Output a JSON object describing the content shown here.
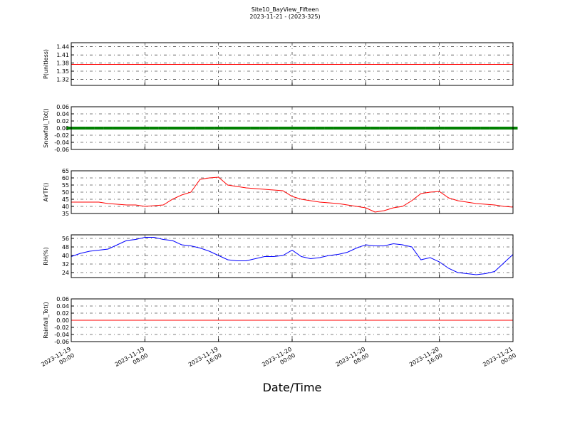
{
  "title": "Site10_BayView_Fifteen",
  "subtitle": "2023-11-21 - (2023-325)",
  "xlabel": "Date/Time",
  "x": [
    "2023-11-19 00:00",
    "2023-11-19 01:00",
    "2023-11-19 02:00",
    "2023-11-19 03:00",
    "2023-11-19 04:00",
    "2023-11-19 05:00",
    "2023-11-19 06:00",
    "2023-11-19 07:00",
    "2023-11-19 08:00",
    "2023-11-19 09:00",
    "2023-11-19 10:00",
    "2023-11-19 11:00",
    "2023-11-19 12:00",
    "2023-11-19 13:00",
    "2023-11-19 14:00",
    "2023-11-19 15:00",
    "2023-11-19 16:00",
    "2023-11-19 17:00",
    "2023-11-19 18:00",
    "2023-11-19 19:00",
    "2023-11-19 20:00",
    "2023-11-19 21:00",
    "2023-11-19 22:00",
    "2023-11-19 23:00",
    "2023-11-20 00:00",
    "2023-11-20 01:00",
    "2023-11-20 02:00",
    "2023-11-20 03:00",
    "2023-11-20 04:00",
    "2023-11-20 05:00",
    "2023-11-20 06:00",
    "2023-11-20 07:00",
    "2023-11-20 08:00",
    "2023-11-20 09:00",
    "2023-11-20 10:00",
    "2023-11-20 11:00",
    "2023-11-20 12:00",
    "2023-11-20 13:00",
    "2023-11-20 14:00",
    "2023-11-20 15:00",
    "2023-11-20 16:00",
    "2023-11-20 17:00",
    "2023-11-20 18:00",
    "2023-11-20 19:00",
    "2023-11-20 20:00",
    "2023-11-20 21:00",
    "2023-11-20 22:00",
    "2023-11-20 23:00",
    "2023-11-21 00:00"
  ],
  "xlim": [
    "2023-11-19 00:00",
    "2023-11-21 00:00"
  ],
  "xticks": [
    "2023-11-19 00:00",
    "2023-11-19 08:00",
    "2023-11-19 16:00",
    "2023-11-20 00:00",
    "2023-11-20 08:00",
    "2023-11-20 16:00",
    "2023-11-21 00:00"
  ],
  "grid": true,
  "chart_data": [
    {
      "type": "line",
      "ylabel": "P(unitless)",
      "ylim": [
        1.2975,
        1.455
      ],
      "yticks": [
        1.32,
        1.35,
        1.38,
        1.41,
        1.44
      ],
      "series": [
        {
          "color": "#ff0000",
          "values": [
            1.375,
            1.375,
            1.375,
            1.375,
            1.375,
            1.375,
            1.375,
            1.375,
            1.375,
            1.375,
            1.375,
            1.375,
            1.375,
            1.375,
            1.375,
            1.375,
            1.375,
            1.375,
            1.375,
            1.375,
            1.375,
            1.375,
            1.375,
            1.375,
            1.375,
            1.375,
            1.375,
            1.375,
            1.375,
            1.375,
            1.375,
            1.375,
            1.375,
            1.375,
            1.375,
            1.375,
            1.375,
            1.375,
            1.375,
            1.375,
            1.375,
            1.375,
            1.375,
            1.375,
            1.375,
            1.375,
            1.375,
            1.375,
            1.375
          ]
        }
      ]
    },
    {
      "type": "scatter",
      "ylabel": "Snowfall_Tot()",
      "ylim": [
        -0.06,
        0.06
      ],
      "yticks": [
        -0.06,
        -0.04,
        -0.02,
        {
          "value": 0,
          "label": "0.00"
        },
        0.02,
        0.04,
        0.06
      ],
      "series": [
        {
          "color": "#008000",
          "values": [
            0,
            0,
            0,
            0,
            0,
            0,
            0,
            0,
            0,
            0,
            0,
            0,
            0,
            0,
            0,
            0,
            0,
            0,
            0,
            0,
            0,
            0,
            0,
            0,
            0,
            0,
            0,
            0,
            0,
            0,
            0,
            0,
            0,
            0,
            0,
            0,
            0,
            0,
            0,
            0,
            0,
            0,
            0,
            0,
            0,
            0,
            0,
            0,
            0
          ]
        }
      ]
    },
    {
      "type": "line",
      "ylabel": "AirTF()",
      "ylim": [
        35,
        65
      ],
      "yticks": [
        35,
        40,
        45,
        50,
        55,
        60,
        65
      ],
      "series": [
        {
          "color": "#ff0000",
          "values": [
            43,
            43,
            43,
            43,
            42,
            41.5,
            41,
            41,
            40,
            40.5,
            41,
            45,
            48,
            50,
            59,
            60,
            60.5,
            55,
            54,
            53,
            52.5,
            52,
            51.5,
            51,
            47,
            45,
            44,
            43,
            42.5,
            42,
            41,
            40,
            39,
            36,
            37,
            39,
            40,
            44,
            49,
            50,
            50.5,
            46,
            44,
            43,
            42,
            41.5,
            41,
            40,
            39.5
          ]
        }
      ]
    },
    {
      "type": "line",
      "ylabel": "RH(%)",
      "ylim": [
        19.33,
        59.33
      ],
      "yticks": [
        24,
        32,
        40,
        48,
        56
      ],
      "series": [
        {
          "color": "#0000ff",
          "values": [
            39,
            42,
            44,
            45,
            46,
            50,
            54,
            55,
            57,
            57,
            55,
            54,
            50,
            49,
            47,
            44,
            40,
            36,
            35,
            35,
            37,
            39,
            39,
            40,
            45,
            39,
            37,
            38,
            40,
            41,
            43,
            47,
            50,
            49,
            49,
            51,
            50,
            48,
            36,
            38,
            34,
            28,
            24,
            23,
            22,
            23,
            25,
            33,
            41
          ]
        }
      ]
    },
    {
      "type": "line",
      "ylabel": "Rainfall_Tot()",
      "ylim": [
        -0.06,
        0.06
      ],
      "yticks": [
        -0.06,
        -0.04,
        -0.02,
        {
          "value": 0,
          "label": "0.00"
        },
        0.02,
        0.04,
        0.06
      ],
      "series": [
        {
          "color": "#ff0000",
          "values": [
            0,
            0,
            0,
            0,
            0,
            0,
            0,
            0,
            0,
            0,
            0,
            0,
            0,
            0,
            0,
            0,
            0,
            0,
            0,
            0,
            0,
            0,
            0,
            0,
            0,
            0,
            0,
            0,
            0,
            0,
            0,
            0,
            0,
            0,
            0,
            0,
            0,
            0,
            0,
            0,
            0,
            0,
            0,
            0,
            0,
            0,
            0,
            0,
            0
          ]
        }
      ]
    }
  ]
}
